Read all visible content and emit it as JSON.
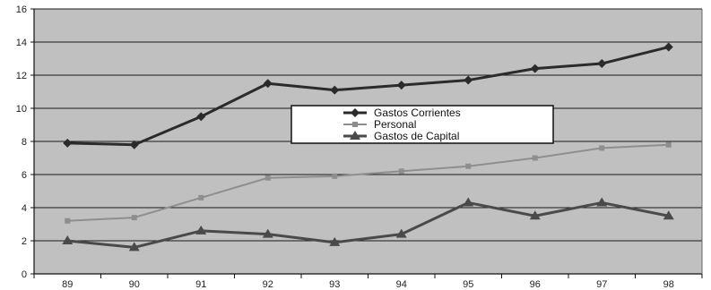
{
  "chart_data": {
    "type": "line",
    "title": "",
    "xlabel": "",
    "ylabel": "",
    "categories": [
      "89",
      "90",
      "91",
      "92",
      "93",
      "94",
      "95",
      "96",
      "97",
      "98"
    ],
    "ylim": [
      0,
      16
    ],
    "yticks": [
      "0",
      "2",
      "4",
      "6",
      "8",
      "10",
      "12",
      "14",
      "16"
    ],
    "grid": true,
    "legend_position": "center",
    "plot_background": "#c0c0c0",
    "series": [
      {
        "name": "Gastos Corrientes",
        "values": [
          7.9,
          7.8,
          9.5,
          11.5,
          11.1,
          11.4,
          11.7,
          12.4,
          12.7,
          13.7
        ],
        "color": "#2b2b2b",
        "marker": "diamond"
      },
      {
        "name": "Personal",
        "values": [
          3.2,
          3.4,
          4.6,
          5.8,
          5.9,
          6.2,
          6.5,
          7.0,
          7.6,
          7.8
        ],
        "color": "#8e8e8e",
        "marker": "square"
      },
      {
        "name": "Gastos de Capital",
        "values": [
          2.0,
          1.6,
          2.6,
          2.4,
          1.9,
          2.4,
          4.3,
          3.5,
          4.3,
          3.5
        ],
        "color": "#4a4a4a",
        "marker": "triangle"
      }
    ]
  }
}
